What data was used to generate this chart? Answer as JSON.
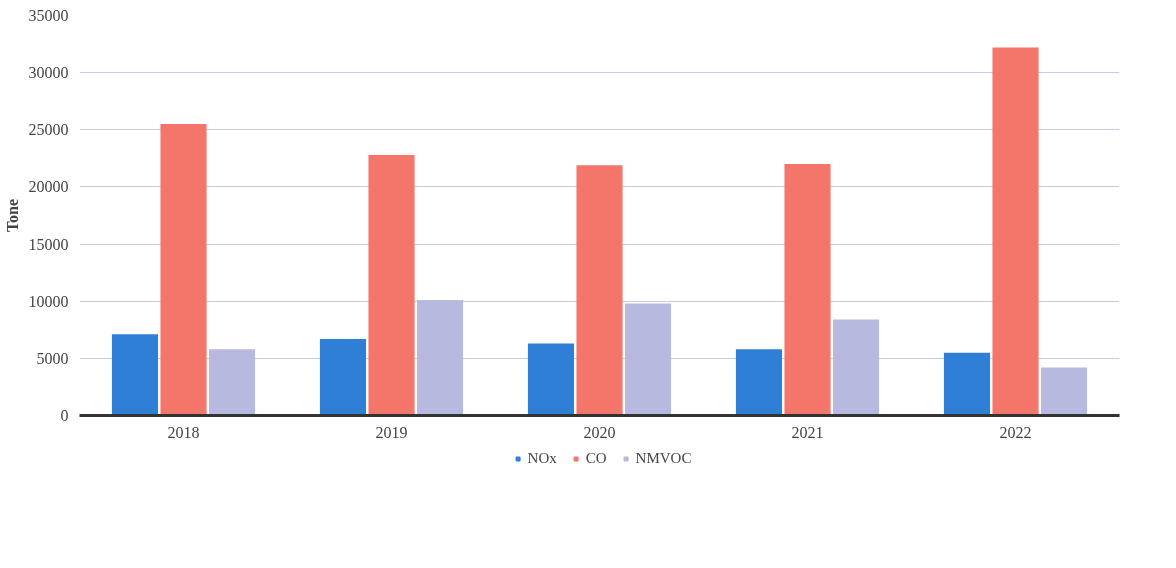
{
  "chart_data": {
    "type": "bar",
    "ylabel": "Tone",
    "categories": [
      "2018",
      "2019",
      "2020",
      "2021",
      "2022"
    ],
    "series": [
      {
        "name": "NOx",
        "color": "#2f7fd6",
        "values": [
          7100,
          6700,
          6300,
          5800,
          5500
        ]
      },
      {
        "name": "CO",
        "color": "#f4766a",
        "values": [
          25500,
          22800,
          21900,
          22000,
          32200
        ]
      },
      {
        "name": "NMVOC",
        "color": "#b8b9de",
        "values": [
          5800,
          10100,
          9800,
          8400,
          4200
        ]
      }
    ],
    "ylim": [
      0,
      35000
    ],
    "yticks": [
      0,
      5000,
      10000,
      15000,
      20000,
      25000,
      30000,
      35000
    ],
    "grid": "y",
    "legend": "bottom"
  }
}
